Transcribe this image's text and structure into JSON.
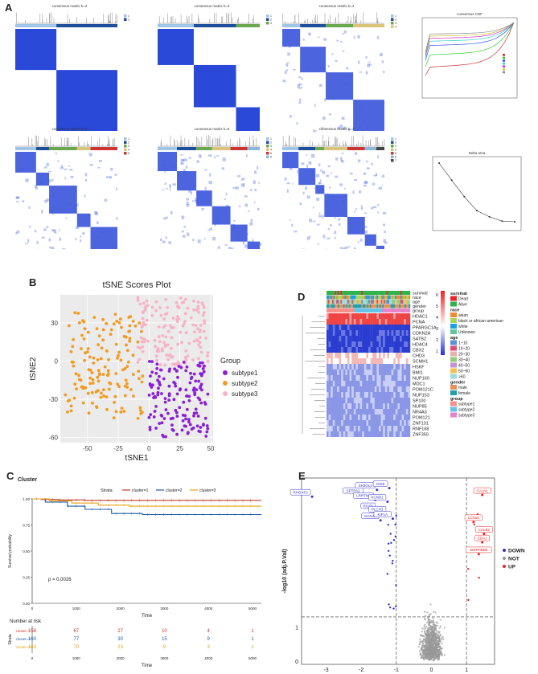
{
  "panels": {
    "A": {
      "letter": "A",
      "matrices": [
        {
          "title": "consensus matrix k=2",
          "legend": [
            "1",
            "2"
          ]
        },
        {
          "title": "consensus matrix k=3",
          "legend": [
            "1",
            "2",
            "3"
          ]
        },
        {
          "title": "consensus matrix k=4",
          "legend": [
            "1",
            "2",
            "3",
            "4"
          ]
        },
        {
          "title": "consensus matrix k=5",
          "legend": [
            "1",
            "2",
            "3",
            "4",
            "5"
          ]
        },
        {
          "title": "consensus matrix k=6",
          "legend": [
            "1",
            "2",
            "3",
            "4",
            "5",
            "6"
          ]
        },
        {
          "title": "consensus matrix k=7",
          "legend": [
            "1",
            "2",
            "3",
            "4",
            "5",
            "6",
            "7"
          ]
        }
      ],
      "cdf_title": "consensus CDF",
      "delta_title": "Delta area"
    },
    "B": {
      "letter": "B"
    },
    "C": {
      "letter": "C"
    },
    "D": {
      "letter": "D"
    },
    "E": {
      "letter": "E"
    }
  },
  "chart_data": [
    {
      "type": "scatter",
      "panel": "B",
      "title": "tSNE Scores Plot",
      "xlabel": "tSNE1",
      "ylabel": "tSNE2",
      "xlim": [
        -72,
        52
      ],
      "ylim": [
        -64,
        52
      ],
      "xticks": [
        -50,
        -25,
        0,
        25,
        50
      ],
      "yticks": [
        -60,
        -30,
        0,
        30
      ],
      "legend_title": "Group",
      "series": [
        {
          "name": "subtype1",
          "color": "#8a1fd6",
          "cluster": {
            "x": [
              0,
              48
            ],
            "y": [
              -60,
              0
            ]
          }
        },
        {
          "name": "subtype2",
          "color": "#f39a1f",
          "cluster": {
            "x": [
              -68,
              -5
            ],
            "y": [
              -45,
              38
            ]
          }
        },
        {
          "name": "subtype3",
          "color": "#f7b3c6",
          "cluster": {
            "x": [
              -10,
              48
            ],
            "y": [
              -5,
              50
            ]
          }
        }
      ]
    },
    {
      "type": "line",
      "panel": "C",
      "title": "Cluster",
      "xlabel": "Time",
      "ylabel": "Survival probability",
      "strata_label": "Strata",
      "xlim": [
        0,
        5200
      ],
      "ylim": [
        0,
        1
      ],
      "xticks": [
        0,
        1000,
        2000,
        3000,
        4000,
        5000
      ],
      "yticks": [
        0,
        0.25,
        0.5,
        0.75,
        1
      ],
      "pvalue": "p = 0.0026",
      "series": [
        {
          "name": "cluster=1",
          "color": "#c0392b",
          "points": [
            [
              0,
              1
            ],
            [
              200,
              0.995
            ],
            [
              600,
              0.99
            ],
            [
              1200,
              0.985
            ],
            [
              5200,
              0.985
            ]
          ]
        },
        {
          "name": "cluster=2",
          "color": "#1f5fa8",
          "points": [
            [
              0,
              1
            ],
            [
              300,
              0.97
            ],
            [
              800,
              0.93
            ],
            [
              1200,
              0.9
            ],
            [
              1800,
              0.86
            ],
            [
              2500,
              0.85
            ],
            [
              5200,
              0.85
            ]
          ]
        },
        {
          "name": "cluster=3",
          "color": "#e8a317",
          "points": [
            [
              0,
              1
            ],
            [
              400,
              0.98
            ],
            [
              900,
              0.96
            ],
            [
              1500,
              0.94
            ],
            [
              2200,
              0.93
            ],
            [
              5200,
              0.93
            ]
          ]
        }
      ],
      "risk_table": {
        "title": "Number at risk",
        "times": [
          0,
          1000,
          2000,
          3000,
          4000,
          5000
        ],
        "rows": [
          {
            "name": "cluster=1",
            "color": "#c0392b",
            "values": [
              158,
              67,
              27,
              10,
              4,
              1
            ]
          },
          {
            "name": "cluster=2",
            "color": "#1f5fa8",
            "values": [
              160,
              77,
              30,
              15,
              9,
              1
            ]
          },
          {
            "name": "cluster=3",
            "color": "#e8a317",
            "values": [
              163,
              79,
              23,
              9,
              3,
              1
            ]
          }
        ]
      }
    },
    {
      "type": "heatmap",
      "panel": "D",
      "rows": [
        "HDAC1",
        "PCNA",
        "PPARGC1A",
        "CDKN2A",
        "SATB2",
        "HDAC4",
        "CBX2",
        "CHD3",
        "SCMH1",
        "HSKF",
        "BMI1",
        "NUP160",
        "MDC1",
        "POM121C",
        "NUP153",
        "SP100",
        "NUP85",
        "NR4A3",
        "POM121",
        "ZNF131",
        "RNF168",
        "ZNF350"
      ],
      "annotations": [
        "survival",
        "race",
        "age",
        "gender",
        "group"
      ],
      "color_scale": {
        "low": "#2233cc",
        "mid": "#ffffff",
        "high": "#ee2222",
        "ticks": [
          6,
          5,
          4,
          3,
          2,
          1
        ]
      },
      "legends": [
        {
          "title": "survival",
          "items": [
            {
              "label": "Dead",
              "color": "#e8262a"
            },
            {
              "label": "Alive",
              "color": "#2db34a"
            }
          ]
        },
        {
          "title": "race",
          "items": [
            {
              "label": "asian",
              "color": "#f08a2e"
            },
            {
              "label": "black or african american",
              "color": "#a4d65e"
            },
            {
              "label": "white",
              "color": "#1a9fe0"
            },
            {
              "label": "Unknown",
              "color": "#5ec6a0"
            }
          ]
        },
        {
          "title": "age",
          "items": [
            {
              "label": "1~10",
              "color": "#5a8fd9"
            },
            {
              "label": "10~20",
              "color": "#d94c75"
            },
            {
              "label": "20~30",
              "color": "#e6b0b0"
            },
            {
              "label": "30~40",
              "color": "#93c97a"
            },
            {
              "label": "40~50",
              "color": "#c58fd0"
            },
            {
              "label": "50~60",
              "color": "#f5c04d"
            },
            {
              "label": ">60",
              "color": "#9adce0"
            }
          ]
        },
        {
          "title": "gender",
          "items": [
            {
              "label": "male",
              "color": "#e6905a"
            },
            {
              "label": "female",
              "color": "#1e9fb0"
            }
          ]
        },
        {
          "title": "group",
          "items": [
            {
              "label": "subtype1",
              "color": "#f88f8a"
            },
            {
              "label": "subtype2",
              "color": "#63c3e8"
            },
            {
              "label": "subtype3",
              "color": "#e684c9"
            }
          ]
        }
      ]
    },
    {
      "type": "scatter",
      "panel": "E",
      "xlabel": "log (Fold Change)",
      "ylabel": "-log10 (adj.P.Val)",
      "xlim": [
        -3.7,
        1.8
      ],
      "ylim": [
        -0.1,
        5.4
      ],
      "xticks": [
        -3,
        -2,
        -1,
        0,
        1
      ],
      "yticks": [
        0,
        1,
        5
      ],
      "legend": [
        {
          "label": "DOWN",
          "color": "#3333cc"
        },
        {
          "label": "NOT",
          "color": "#999999"
        },
        {
          "label": "UP",
          "color": "#ee2222"
        }
      ],
      "labeled_points": [
        {
          "label": "RHOXF2",
          "x": -3.4,
          "y": 4.85,
          "group": "DOWN"
        },
        {
          "label": "SPTPA2",
          "x": -1.9,
          "y": 4.9,
          "group": "DOWN"
        },
        {
          "label": "SH3GL2",
          "x": -1.55,
          "y": 5.05,
          "group": "DOWN"
        },
        {
          "label": "INS5",
          "x": -1.2,
          "y": 5.1,
          "group": "DOWN"
        },
        {
          "label": "LRRTM1",
          "x": -1.6,
          "y": 4.75,
          "group": "DOWN"
        },
        {
          "label": "KCND1",
          "x": -1.25,
          "y": 4.7,
          "group": "DOWN"
        },
        {
          "label": "RGS5",
          "x": -1.55,
          "y": 4.45,
          "group": "DOWN"
        },
        {
          "label": "PLCH3",
          "x": -1.25,
          "y": 4.35,
          "group": "DOWN"
        },
        {
          "label": "KCNJ1",
          "x": -1.45,
          "y": 4.15,
          "group": "DOWN"
        },
        {
          "label": "KIF1A",
          "x": -1.1,
          "y": 4.2,
          "group": "DOWN"
        },
        {
          "label": "CALN1",
          "x": 1.45,
          "y": 4.9,
          "group": "UP"
        },
        {
          "label": "LCN10",
          "x": 1.2,
          "y": 4.1,
          "group": "UP"
        },
        {
          "label": "CALB2",
          "x": 1.5,
          "y": 3.75,
          "group": "UP"
        },
        {
          "label": "EDA1",
          "x": 1.45,
          "y": 3.5,
          "group": "UP"
        },
        {
          "label": "SERPINB5",
          "x": 1.35,
          "y": 3.15,
          "group": "UP"
        }
      ]
    }
  ]
}
